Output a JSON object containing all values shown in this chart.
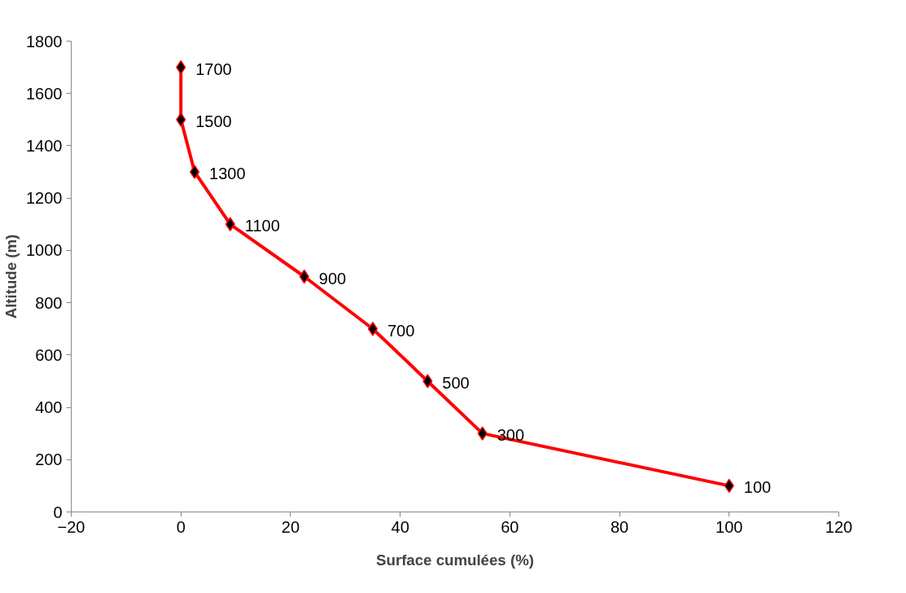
{
  "chart_data": {
    "type": "line",
    "xlabel": "Surface cumulées (%)",
    "ylabel": "Altitude (m)",
    "x": [
      0,
      0,
      2.5,
      9,
      22.5,
      35,
      45,
      55,
      100
    ],
    "series": [
      {
        "color": "#ff0000",
        "values": [
          1700,
          1500,
          1300,
          1100,
          900,
          700,
          500,
          300,
          100
        ]
      }
    ],
    "xlim": [
      -20,
      120
    ],
    "xticks": [
      -20,
      0,
      20,
      40,
      60,
      80,
      100,
      120
    ],
    "ylim": [
      0,
      1800
    ],
    "yticks": [
      0,
      200,
      400,
      600,
      800,
      1000,
      1200,
      1400,
      1600,
      1800
    ],
    "marker": "diamond",
    "line_style": "solid",
    "grid": false,
    "data_labels": true
  }
}
